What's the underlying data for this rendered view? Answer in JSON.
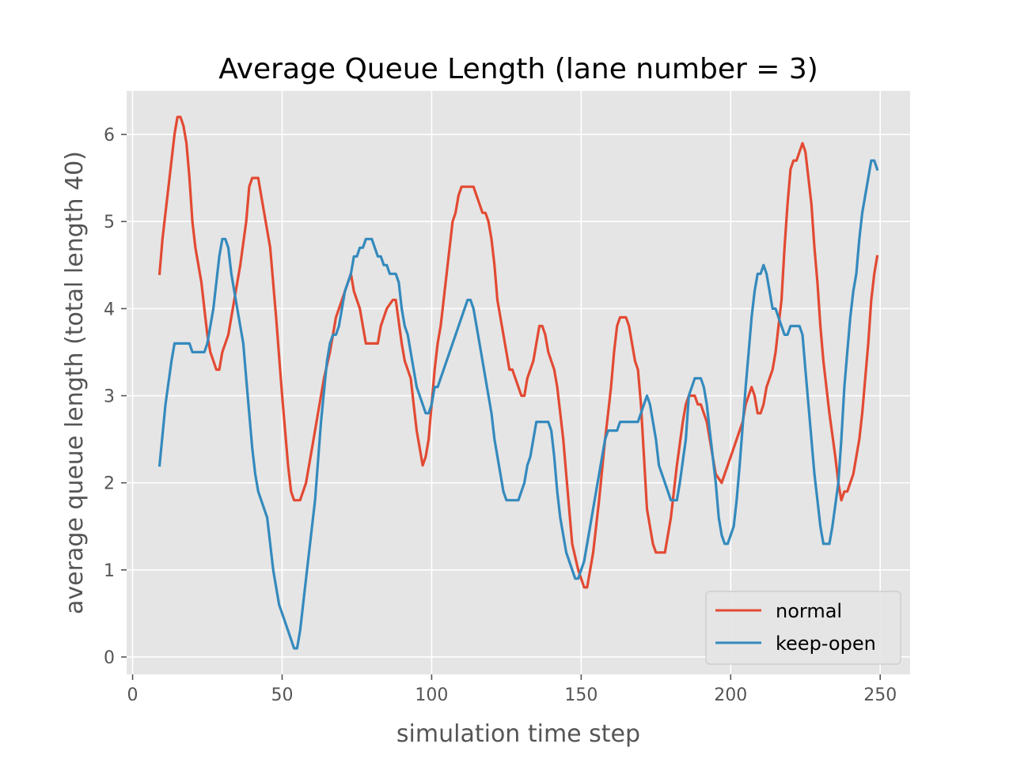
{
  "chart_data": {
    "type": "line",
    "title": "Average Queue Length (lane number = 3)",
    "xlabel": "simulation time step",
    "ylabel": "average queue length (total length 40)",
    "xlim": [
      -2,
      260
    ],
    "ylim": [
      -0.2,
      6.5
    ],
    "xticks": [
      0,
      50,
      100,
      150,
      200,
      250
    ],
    "yticks": [
      0,
      1,
      2,
      3,
      4,
      5,
      6
    ],
    "grid": true,
    "legend_position": "lower-right",
    "background": "#e5e5e5",
    "series": [
      {
        "name": "normal",
        "color": "#e24a33",
        "points": [
          [
            9,
            4.4
          ],
          [
            10,
            4.8
          ],
          [
            12,
            5.4
          ],
          [
            14,
            6.0
          ],
          [
            15,
            6.2
          ],
          [
            16,
            6.2
          ],
          [
            17,
            6.1
          ],
          [
            18,
            5.9
          ],
          [
            19,
            5.5
          ],
          [
            20,
            5.0
          ],
          [
            21,
            4.7
          ],
          [
            23,
            4.3
          ],
          [
            24,
            4.0
          ],
          [
            25,
            3.7
          ],
          [
            26,
            3.5
          ],
          [
            28,
            3.3
          ],
          [
            29,
            3.3
          ],
          [
            30,
            3.5
          ],
          [
            32,
            3.7
          ],
          [
            34,
            4.1
          ],
          [
            36,
            4.5
          ],
          [
            38,
            5.0
          ],
          [
            39,
            5.4
          ],
          [
            40,
            5.5
          ],
          [
            42,
            5.5
          ],
          [
            43,
            5.3
          ],
          [
            45,
            4.9
          ],
          [
            46,
            4.7
          ],
          [
            48,
            3.9
          ],
          [
            50,
            3.0
          ],
          [
            52,
            2.2
          ],
          [
            53,
            1.9
          ],
          [
            54,
            1.8
          ],
          [
            56,
            1.8
          ],
          [
            58,
            2.0
          ],
          [
            60,
            2.4
          ],
          [
            62,
            2.8
          ],
          [
            64,
            3.2
          ],
          [
            66,
            3.5
          ],
          [
            68,
            3.9
          ],
          [
            70,
            4.1
          ],
          [
            72,
            4.3
          ],
          [
            73,
            4.4
          ],
          [
            74,
            4.2
          ],
          [
            76,
            4.0
          ],
          [
            78,
            3.6
          ],
          [
            82,
            3.6
          ],
          [
            83,
            3.8
          ],
          [
            85,
            4.0
          ],
          [
            87,
            4.1
          ],
          [
            88,
            4.1
          ],
          [
            90,
            3.6
          ],
          [
            91,
            3.4
          ],
          [
            93,
            3.2
          ],
          [
            94,
            2.9
          ],
          [
            95,
            2.6
          ],
          [
            97,
            2.2
          ],
          [
            98,
            2.3
          ],
          [
            99,
            2.5
          ],
          [
            100,
            2.9
          ],
          [
            101,
            3.3
          ],
          [
            102,
            3.6
          ],
          [
            103,
            3.8
          ],
          [
            107,
            5.0
          ],
          [
            108,
            5.1
          ],
          [
            109,
            5.3
          ],
          [
            110,
            5.4
          ],
          [
            114,
            5.4
          ],
          [
            115,
            5.3
          ],
          [
            117,
            5.1
          ],
          [
            118,
            5.1
          ],
          [
            119,
            5.0
          ],
          [
            120,
            4.8
          ],
          [
            121,
            4.5
          ],
          [
            122,
            4.1
          ],
          [
            126,
            3.3
          ],
          [
            127,
            3.3
          ],
          [
            129,
            3.1
          ],
          [
            130,
            3.0
          ],
          [
            131,
            3.0
          ],
          [
            132,
            3.2
          ],
          [
            134,
            3.4
          ],
          [
            136,
            3.8
          ],
          [
            137,
            3.8
          ],
          [
            138,
            3.7
          ],
          [
            139,
            3.5
          ],
          [
            141,
            3.3
          ],
          [
            142,
            3.1
          ],
          [
            144,
            2.5
          ],
          [
            146,
            1.7
          ],
          [
            147,
            1.3
          ],
          [
            149,
            1.0
          ],
          [
            151,
            0.8
          ],
          [
            152,
            0.8
          ],
          [
            154,
            1.2
          ],
          [
            156,
            1.8
          ],
          [
            158,
            2.5
          ],
          [
            159,
            2.8
          ],
          [
            160,
            3.1
          ],
          [
            161,
            3.5
          ],
          [
            162,
            3.8
          ],
          [
            163,
            3.9
          ],
          [
            165,
            3.9
          ],
          [
            166,
            3.8
          ],
          [
            168,
            3.4
          ],
          [
            169,
            3.3
          ],
          [
            170,
            2.9
          ],
          [
            171,
            2.3
          ],
          [
            172,
            1.7
          ],
          [
            174,
            1.3
          ],
          [
            175,
            1.2
          ],
          [
            178,
            1.2
          ],
          [
            180,
            1.6
          ],
          [
            182,
            2.2
          ],
          [
            184,
            2.7
          ],
          [
            185,
            2.9
          ],
          [
            186,
            3.0
          ],
          [
            188,
            3.0
          ],
          [
            189,
            2.9
          ],
          [
            190,
            2.9
          ],
          [
            192,
            2.7
          ],
          [
            193,
            2.5
          ],
          [
            195,
            2.1
          ],
          [
            197,
            2.0
          ],
          [
            199,
            2.2
          ],
          [
            201,
            2.4
          ],
          [
            203,
            2.6
          ],
          [
            204,
            2.7
          ],
          [
            205,
            2.9
          ],
          [
            207,
            3.1
          ],
          [
            208,
            3.0
          ],
          [
            209,
            2.8
          ],
          [
            210,
            2.8
          ],
          [
            211,
            2.9
          ],
          [
            212,
            3.1
          ],
          [
            214,
            3.3
          ],
          [
            215,
            3.5
          ],
          [
            216,
            3.8
          ],
          [
            217,
            4.1
          ],
          [
            218,
            4.7
          ],
          [
            219,
            5.2
          ],
          [
            220,
            5.6
          ],
          [
            221,
            5.7
          ],
          [
            222,
            5.7
          ],
          [
            224,
            5.9
          ],
          [
            225,
            5.8
          ],
          [
            226,
            5.5
          ],
          [
            227,
            5.2
          ],
          [
            228,
            4.7
          ],
          [
            229,
            4.3
          ],
          [
            230,
            3.8
          ],
          [
            231,
            3.4
          ],
          [
            233,
            2.8
          ],
          [
            235,
            2.3
          ],
          [
            236,
            2.0
          ],
          [
            237,
            1.8
          ],
          [
            238,
            1.9
          ],
          [
            239,
            1.9
          ],
          [
            241,
            2.1
          ],
          [
            243,
            2.5
          ],
          [
            244,
            2.8
          ],
          [
            246,
            3.6
          ],
          [
            247,
            4.1
          ],
          [
            248,
            4.4
          ],
          [
            249,
            4.6
          ]
        ]
      },
      {
        "name": "keep-open",
        "color": "#348abd",
        "points": [
          [
            9,
            2.2
          ],
          [
            11,
            2.9
          ],
          [
            13,
            3.4
          ],
          [
            14,
            3.6
          ],
          [
            19,
            3.6
          ],
          [
            20,
            3.5
          ],
          [
            24,
            3.5
          ],
          [
            25,
            3.6
          ],
          [
            27,
            4.0
          ],
          [
            29,
            4.6
          ],
          [
            30,
            4.8
          ],
          [
            31,
            4.8
          ],
          [
            32,
            4.7
          ],
          [
            33,
            4.4
          ],
          [
            35,
            4.0
          ],
          [
            37,
            3.6
          ],
          [
            38,
            3.2
          ],
          [
            39,
            2.8
          ],
          [
            40,
            2.4
          ],
          [
            41,
            2.1
          ],
          [
            42,
            1.9
          ],
          [
            44,
            1.7
          ],
          [
            45,
            1.6
          ],
          [
            46,
            1.3
          ],
          [
            47,
            1.0
          ],
          [
            49,
            0.6
          ],
          [
            51,
            0.4
          ],
          [
            53,
            0.2
          ],
          [
            54,
            0.1
          ],
          [
            55,
            0.1
          ],
          [
            56,
            0.3
          ],
          [
            58,
            0.9
          ],
          [
            60,
            1.5
          ],
          [
            61,
            1.8
          ],
          [
            63,
            2.7
          ],
          [
            65,
            3.4
          ],
          [
            66,
            3.6
          ],
          [
            67,
            3.7
          ],
          [
            68,
            3.7
          ],
          [
            69,
            3.8
          ],
          [
            71,
            4.2
          ],
          [
            73,
            4.4
          ],
          [
            74,
            4.6
          ],
          [
            75,
            4.6
          ],
          [
            76,
            4.7
          ],
          [
            77,
            4.7
          ],
          [
            78,
            4.8
          ],
          [
            80,
            4.8
          ],
          [
            82,
            4.6
          ],
          [
            83,
            4.6
          ],
          [
            84,
            4.5
          ],
          [
            85,
            4.5
          ],
          [
            86,
            4.4
          ],
          [
            88,
            4.4
          ],
          [
            89,
            4.3
          ],
          [
            90,
            4.0
          ],
          [
            91,
            3.8
          ],
          [
            92,
            3.7
          ],
          [
            95,
            3.1
          ],
          [
            97,
            2.9
          ],
          [
            98,
            2.8
          ],
          [
            99,
            2.8
          ],
          [
            100,
            2.9
          ],
          [
            101,
            3.1
          ],
          [
            102,
            3.1
          ],
          [
            112,
            4.1
          ],
          [
            113,
            4.1
          ],
          [
            114,
            4.0
          ],
          [
            116,
            3.6
          ],
          [
            120,
            2.8
          ],
          [
            121,
            2.5
          ],
          [
            124,
            1.9
          ],
          [
            125,
            1.8
          ],
          [
            129,
            1.8
          ],
          [
            131,
            2.0
          ],
          [
            132,
            2.2
          ],
          [
            133,
            2.3
          ],
          [
            135,
            2.7
          ],
          [
            139,
            2.7
          ],
          [
            140,
            2.6
          ],
          [
            141,
            2.3
          ],
          [
            142,
            1.9
          ],
          [
            143,
            1.6
          ],
          [
            145,
            1.2
          ],
          [
            148,
            0.9
          ],
          [
            149,
            0.9
          ],
          [
            151,
            1.1
          ],
          [
            153,
            1.5
          ],
          [
            155,
            1.9
          ],
          [
            157,
            2.3
          ],
          [
            158,
            2.5
          ],
          [
            159,
            2.6
          ],
          [
            162,
            2.6
          ],
          [
            163,
            2.7
          ],
          [
            169,
            2.7
          ],
          [
            170,
            2.8
          ],
          [
            171,
            2.9
          ],
          [
            172,
            3.0
          ],
          [
            173,
            2.9
          ],
          [
            175,
            2.5
          ],
          [
            176,
            2.2
          ],
          [
            178,
            2.0
          ],
          [
            180,
            1.8
          ],
          [
            182,
            1.8
          ],
          [
            183,
            2.0
          ],
          [
            185,
            2.5
          ],
          [
            186,
            3.0
          ],
          [
            188,
            3.2
          ],
          [
            190,
            3.2
          ],
          [
            191,
            3.1
          ],
          [
            192,
            2.9
          ],
          [
            193,
            2.6
          ],
          [
            194,
            2.3
          ],
          [
            195,
            2.0
          ],
          [
            196,
            1.6
          ],
          [
            197,
            1.4
          ],
          [
            198,
            1.3
          ],
          [
            199,
            1.3
          ],
          [
            201,
            1.5
          ],
          [
            202,
            1.8
          ],
          [
            203,
            2.2
          ],
          [
            205,
            3.1
          ],
          [
            206,
            3.5
          ],
          [
            207,
            3.9
          ],
          [
            208,
            4.2
          ],
          [
            209,
            4.4
          ],
          [
            210,
            4.4
          ],
          [
            211,
            4.5
          ],
          [
            212,
            4.4
          ],
          [
            213,
            4.2
          ],
          [
            214,
            4.0
          ],
          [
            215,
            4.0
          ],
          [
            216,
            3.9
          ],
          [
            218,
            3.7
          ],
          [
            219,
            3.7
          ],
          [
            220,
            3.8
          ],
          [
            223,
            3.8
          ],
          [
            224,
            3.7
          ],
          [
            225,
            3.3
          ],
          [
            226,
            2.9
          ],
          [
            227,
            2.5
          ],
          [
            228,
            2.1
          ],
          [
            229,
            1.8
          ],
          [
            230,
            1.5
          ],
          [
            231,
            1.3
          ],
          [
            233,
            1.3
          ],
          [
            234,
            1.5
          ],
          [
            236,
            2.0
          ],
          [
            237,
            2.5
          ],
          [
            238,
            3.1
          ],
          [
            239,
            3.5
          ],
          [
            240,
            3.9
          ],
          [
            241,
            4.2
          ],
          [
            242,
            4.4
          ],
          [
            243,
            4.8
          ],
          [
            244,
            5.1
          ],
          [
            245,
            5.3
          ],
          [
            246,
            5.5
          ],
          [
            247,
            5.7
          ],
          [
            248,
            5.7
          ],
          [
            249,
            5.6
          ]
        ]
      }
    ]
  }
}
